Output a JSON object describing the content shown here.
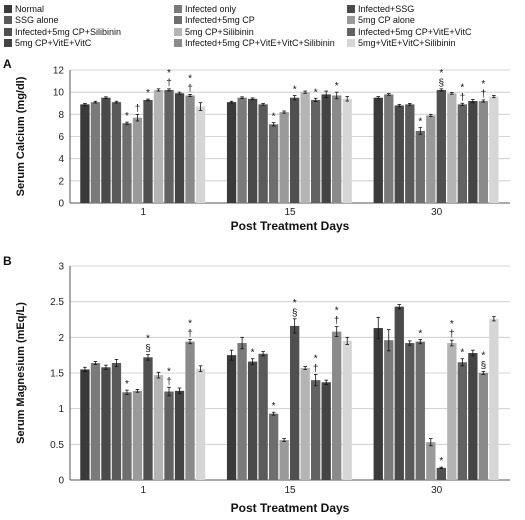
{
  "legend": [
    {
      "label": "Normal",
      "color": "#3a3a3a"
    },
    {
      "label": "Infected only",
      "color": "#7a7a7a"
    },
    {
      "label": "Infected+SSG",
      "color": "#4a4a4a"
    },
    {
      "label": "SSG alone",
      "color": "#5a5a5a"
    },
    {
      "label": "Infected+5mg CP",
      "color": "#6e6e6e"
    },
    {
      "label": "5mg CP alone",
      "color": "#9a9a9a"
    },
    {
      "label": "Infected+5mg CP+Silibinin",
      "color": "#505050"
    },
    {
      "label": "5mg CP+Silibinin",
      "color": "#b4b4b4"
    },
    {
      "label": "Infected+5mg CP+VitE+VitC",
      "color": "#626262"
    },
    {
      "label": "5mg CP+VitE+VitC",
      "color": "#444444"
    },
    {
      "label": "Infected+5mg CP+VitE+VitC+Silibinin",
      "color": "#8a8a8a"
    },
    {
      "label": "5mg+VitE+VitC+Silibinin",
      "color": "#d6d6d6"
    }
  ],
  "chart_data": [
    {
      "panel_label": "A",
      "type": "bar",
      "xlabel": "Post Treatment Days",
      "ylabel": "Serum Calcium (mg/dl)",
      "ylim": [
        0,
        12
      ],
      "yticks": [
        0,
        2,
        4,
        6,
        8,
        10,
        12
      ],
      "grid": true,
      "categories": [
        "1",
        "15",
        "30"
      ],
      "series": [
        {
          "name": "Normal",
          "values": [
            8.9,
            9.1,
            9.5
          ],
          "errors": [
            0.08,
            0.08,
            0.1
          ]
        },
        {
          "name": "Infected only",
          "values": [
            9.1,
            9.5,
            9.8
          ],
          "errors": [
            0.08,
            0.08,
            0.08
          ]
        },
        {
          "name": "Infected+SSG",
          "values": [
            9.5,
            9.4,
            8.8
          ],
          "errors": [
            0.08,
            0.08,
            0.1
          ]
        },
        {
          "name": "SSG alone",
          "values": [
            9.1,
            8.9,
            8.9
          ],
          "errors": [
            0.08,
            0.08,
            0.08
          ]
        },
        {
          "name": "Infected+5mg CP",
          "values": [
            7.2,
            7.1,
            6.5
          ],
          "errors": [
            0.1,
            0.15,
            0.3
          ]
        },
        {
          "name": "5mg CP alone",
          "values": [
            7.7,
            8.2,
            7.9
          ],
          "errors": [
            0.3,
            0.1,
            0.1
          ]
        },
        {
          "name": "Infected+5mg CP+Silibinin",
          "values": [
            9.3,
            9.5,
            10.2
          ],
          "errors": [
            0.08,
            0.2,
            0.1
          ]
        },
        {
          "name": "5mg CP+Silibinin",
          "values": [
            10.2,
            10.0,
            9.9
          ],
          "errors": [
            0.1,
            0.1,
            0.08
          ]
        },
        {
          "name": "Infected+5mg CP+VitE+VitC",
          "values": [
            10.2,
            9.3,
            8.9
          ],
          "errors": [
            0.1,
            0.15,
            0.1
          ]
        },
        {
          "name": "5mg CP+VitE+VitC",
          "values": [
            9.9,
            9.8,
            9.2
          ],
          "errors": [
            0.1,
            0.3,
            0.15
          ]
        },
        {
          "name": "Infected+5mg CP+VitE+VitC+Silibinin",
          "values": [
            9.7,
            9.7,
            9.2
          ],
          "errors": [
            0.1,
            0.3,
            0.1
          ]
        },
        {
          "name": "5mg+VitE+VitC+Silibinin",
          "values": [
            8.7,
            9.4,
            9.6
          ],
          "errors": [
            0.35,
            0.2,
            0.1
          ]
        }
      ],
      "annotations": [
        {
          "category": "1",
          "series": "Infected+5mg CP",
          "text": "*"
        },
        {
          "category": "1",
          "series": "5mg CP alone",
          "text": "†"
        },
        {
          "category": "1",
          "series": "Infected+5mg CP+Silibinin",
          "text": "*"
        },
        {
          "category": "1",
          "series": "Infected+5mg CP+VitE+VitC",
          "text": "*\n†"
        },
        {
          "category": "1",
          "series": "Infected+5mg CP+VitE+VitC+Silibinin",
          "text": "*\n†"
        },
        {
          "category": "15",
          "series": "Infected+5mg CP",
          "text": "*"
        },
        {
          "category": "15",
          "series": "Infected+5mg CP+Silibinin",
          "text": "*"
        },
        {
          "category": "15",
          "series": "Infected+5mg CP+VitE+VitC",
          "text": "*"
        },
        {
          "category": "15",
          "series": "Infected+5mg CP+VitE+VitC+Silibinin",
          "text": "*"
        },
        {
          "category": "30",
          "series": "Infected+5mg CP",
          "text": "*"
        },
        {
          "category": "30",
          "series": "Infected+5mg CP+Silibinin",
          "text": "*\n§"
        },
        {
          "category": "30",
          "series": "Infected+5mg CP+VitE+VitC",
          "text": "*\n†"
        },
        {
          "category": "30",
          "series": "Infected+5mg CP+VitE+VitC+Silibinin",
          "text": "*\n†"
        }
      ]
    },
    {
      "panel_label": "B",
      "type": "bar",
      "xlabel": "Post Treatment Days",
      "ylabel": "Serum Magnesium (mEq/L)",
      "ylim": [
        0,
        3
      ],
      "yticks": [
        0,
        0.5,
        1,
        1.5,
        2,
        2.5,
        3
      ],
      "grid": true,
      "categories": [
        "1",
        "15",
        "30"
      ],
      "series": [
        {
          "name": "Normal",
          "values": [
            1.55,
            1.75,
            2.13
          ],
          "errors": [
            0.03,
            0.07,
            0.15
          ]
        },
        {
          "name": "Infected only",
          "values": [
            1.64,
            1.92,
            1.96
          ],
          "errors": [
            0.02,
            0.08,
            0.15
          ]
        },
        {
          "name": "Infected+SSG",
          "values": [
            1.58,
            1.66,
            2.43
          ],
          "errors": [
            0.03,
            0.04,
            0.03
          ]
        },
        {
          "name": "SSG alone",
          "values": [
            1.64,
            1.77,
            1.92
          ],
          "errors": [
            0.05,
            0.03,
            0.03
          ]
        },
        {
          "name": "Infected+5mg CP",
          "values": [
            1.23,
            0.93,
            1.94
          ],
          "errors": [
            0.03,
            0.02,
            0.03
          ]
        },
        {
          "name": "5mg CP alone",
          "values": [
            1.25,
            0.56,
            0.53
          ],
          "errors": [
            0.02,
            0.02,
            0.05
          ]
        },
        {
          "name": "Infected+5mg CP+Silibinin",
          "values": [
            1.72,
            2.16,
            0.17
          ],
          "errors": [
            0.04,
            0.1,
            0.01
          ]
        },
        {
          "name": "5mg CP+Silibinin",
          "values": [
            1.47,
            1.57,
            1.92
          ],
          "errors": [
            0.04,
            0.02,
            0.04
          ]
        },
        {
          "name": "Infected+5mg CP+VitE+VitC",
          "values": [
            1.24,
            1.4,
            1.65
          ],
          "errors": [
            0.06,
            0.08,
            0.05
          ]
        },
        {
          "name": "5mg CP+VitE+VitC",
          "values": [
            1.25,
            1.37,
            1.78
          ],
          "errors": [
            0.04,
            0.03,
            0.04
          ]
        },
        {
          "name": "Infected+5mg CP+VitE+VitC+Silibinin",
          "values": [
            1.94,
            2.08,
            1.5
          ],
          "errors": [
            0.03,
            0.07,
            0.02
          ]
        },
        {
          "name": "5mg+VitE+VitC+Silibinin",
          "values": [
            1.56,
            1.95,
            2.26
          ],
          "errors": [
            0.04,
            0.05,
            0.03
          ]
        }
      ],
      "annotations": [
        {
          "category": "1",
          "series": "Infected+5mg CP",
          "text": "*"
        },
        {
          "category": "1",
          "series": "Infected+5mg CP+Silibinin",
          "text": "*\n§"
        },
        {
          "category": "1",
          "series": "Infected+5mg CP+VitE+VitC",
          "text": "*\n†"
        },
        {
          "category": "1",
          "series": "Infected+5mg CP+VitE+VitC+Silibinin",
          "text": "*\n†"
        },
        {
          "category": "15",
          "series": "Infected+SSG",
          "text": "*"
        },
        {
          "category": "15",
          "series": "Infected+5mg CP",
          "text": "*"
        },
        {
          "category": "15",
          "series": "Infected+5mg CP+Silibinin",
          "text": "*\n§"
        },
        {
          "category": "15",
          "series": "Infected+5mg CP+VitE+VitC",
          "text": "*\n†"
        },
        {
          "category": "15",
          "series": "Infected+5mg CP+VitE+VitC+Silibinin",
          "text": "*\n†"
        },
        {
          "category": "30",
          "series": "Infected+5mg CP",
          "text": "*"
        },
        {
          "category": "30",
          "series": "Infected+5mg CP+Silibinin",
          "text": "*"
        },
        {
          "category": "30",
          "series": "5mg CP+Silibinin",
          "text": "*\n†"
        },
        {
          "category": "30",
          "series": "Infected+5mg CP+VitE+VitC",
          "text": "*"
        },
        {
          "category": "30",
          "series": "Infected+5mg CP+VitE+VitC+Silibinin",
          "text": "*\n§"
        }
      ]
    }
  ]
}
